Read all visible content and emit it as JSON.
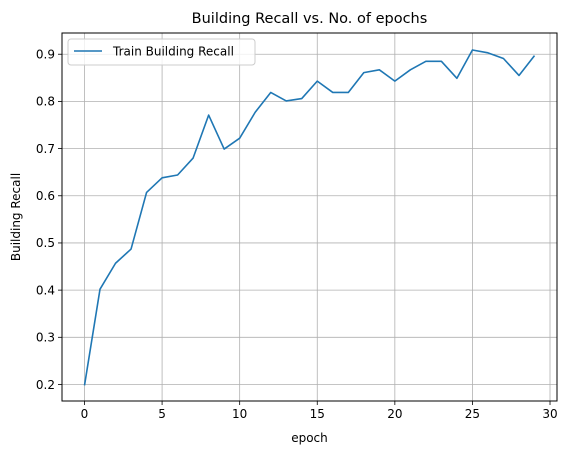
{
  "chart_data": {
    "type": "line",
    "title": "Building Recall vs. No. of epochs",
    "xlabel": "epoch",
    "ylabel": "Building Recall",
    "xlim": [
      -1.45,
      30.45
    ],
    "ylim": [
      0.165,
      0.945
    ],
    "xticks": [
      0,
      5,
      10,
      15,
      20,
      25,
      30
    ],
    "yticks": [
      0.2,
      0.3,
      0.4,
      0.5,
      0.6,
      0.7,
      0.8,
      0.9
    ],
    "grid": true,
    "legend_position": "top-left",
    "series": [
      {
        "name": "Train Building Recall",
        "color": "#1f77b4",
        "x": [
          0,
          1,
          2,
          3,
          4,
          5,
          6,
          7,
          8,
          9,
          10,
          11,
          12,
          13,
          14,
          15,
          16,
          17,
          18,
          19,
          20,
          21,
          22,
          23,
          24,
          25,
          26,
          27,
          28,
          29
        ],
        "y": [
          0.198,
          0.402,
          0.457,
          0.487,
          0.607,
          0.638,
          0.644,
          0.68,
          0.771,
          0.699,
          0.722,
          0.777,
          0.819,
          0.801,
          0.806,
          0.843,
          0.819,
          0.819,
          0.861,
          0.867,
          0.843,
          0.867,
          0.885,
          0.885,
          0.849,
          0.909,
          0.903,
          0.891,
          0.855,
          0.897
        ]
      }
    ]
  }
}
